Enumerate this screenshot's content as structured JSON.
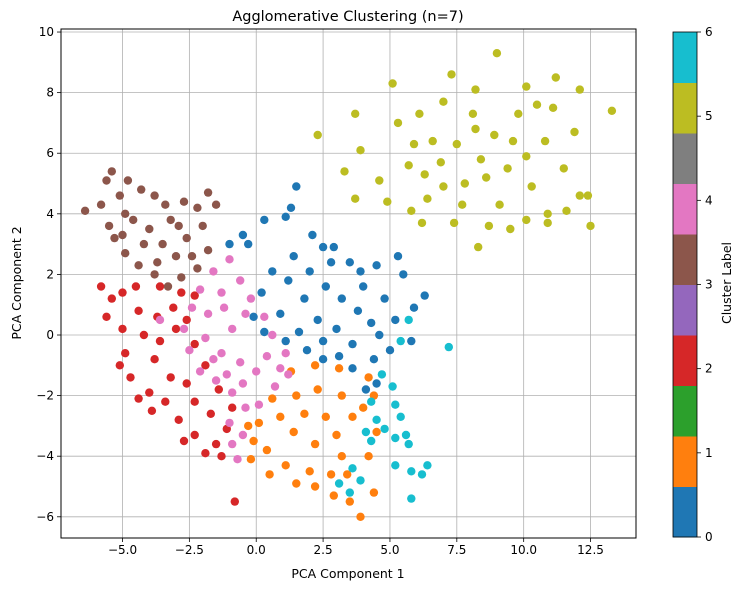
{
  "chart_data": {
    "type": "scatter",
    "title": "Agglomerative Clustering (n=7)",
    "xlabel": "PCA Component 1",
    "ylabel": "PCA Component 2",
    "xlim": [
      -7.3,
      14.2
    ],
    "ylim": [
      -6.7,
      10.1
    ],
    "xticks": [
      -5.0,
      -2.5,
      0.0,
      2.5,
      5.0,
      7.5,
      10.0,
      12.5
    ],
    "xtick_labels": [
      "−5.0",
      "−2.5",
      "0.0",
      "2.5",
      "5.0",
      "7.5",
      "10.0",
      "12.5"
    ],
    "yticks": [
      -6,
      -4,
      -2,
      0,
      2,
      4,
      6,
      8,
      10
    ],
    "ytick_labels": [
      "−6",
      "−4",
      "−2",
      "0",
      "2",
      "4",
      "6",
      "8",
      "10"
    ],
    "grid": true,
    "colorbar": {
      "label": "Cluster Label",
      "ticks": [
        0,
        1,
        2,
        3,
        4,
        5,
        6
      ],
      "tick_labels": [
        "0",
        "1",
        "2",
        "3",
        "4",
        "5",
        "6"
      ],
      "colors": [
        "#1f77b4",
        "#ff7f0e",
        "#2ca02c",
        "#d62728",
        "#9467bd",
        "#8c564b",
        "#e377c2",
        "#7f7f7f",
        "#bcbd22",
        "#17becf"
      ],
      "vmin": 0,
      "vmax": 6
    },
    "series": [
      {
        "cluster": 0,
        "color": "#1f77b4",
        "points": [
          [
            1.5,
            4.9
          ],
          [
            1.3,
            4.2
          ],
          [
            1.1,
            3.9
          ],
          [
            0.3,
            3.8
          ],
          [
            -0.5,
            3.3
          ],
          [
            -1,
            3
          ],
          [
            -0.3,
            3
          ],
          [
            2.5,
            2.9
          ],
          [
            3.5,
            2.4
          ],
          [
            4.5,
            2.3
          ],
          [
            5.3,
            2.6
          ],
          [
            5.5,
            2
          ],
          [
            6.3,
            1.3
          ],
          [
            5.9,
            0.9
          ],
          [
            5.2,
            0.5
          ],
          [
            5.8,
            -0.2
          ],
          [
            5,
            -0.5
          ],
          [
            4.4,
            -0.8
          ],
          [
            4.5,
            -1.6
          ],
          [
            4.1,
            -1.8
          ],
          [
            3.6,
            -1.1
          ],
          [
            3.1,
            -0.7
          ],
          [
            2.5,
            -0.8
          ],
          [
            1.9,
            -0.5
          ],
          [
            1.1,
            -0.2
          ],
          [
            0.3,
            0.1
          ],
          [
            -0.1,
            0.6
          ],
          [
            0.2,
            1.4
          ],
          [
            0.6,
            2.1
          ],
          [
            1.4,
            2.6
          ],
          [
            2,
            2.1
          ],
          [
            2.6,
            1.6
          ],
          [
            3.2,
            1.2
          ],
          [
            3.8,
            0.8
          ],
          [
            4.3,
            0.4
          ],
          [
            1.8,
            1.2
          ],
          [
            2.3,
            0.5
          ],
          [
            3,
            0.2
          ],
          [
            3.6,
            -0.3
          ],
          [
            2.8,
            2.4
          ],
          [
            1.2,
            1.8
          ],
          [
            0.9,
            0.7
          ],
          [
            4,
            1.6
          ],
          [
            4.8,
            1.2
          ],
          [
            2.1,
            3.3
          ],
          [
            2.9,
            2.9
          ],
          [
            3.9,
            2.1
          ],
          [
            1.6,
            0.1
          ],
          [
            2.5,
            -0.2
          ],
          [
            4.6,
            0
          ]
        ]
      },
      {
        "cluster": 1,
        "color": "#ff7f0e",
        "points": [
          [
            1.3,
            -1.2
          ],
          [
            2.2,
            -1
          ],
          [
            3.1,
            -1.1
          ],
          [
            4.2,
            -1.4
          ],
          [
            4,
            -2.4
          ],
          [
            4.5,
            -3.2
          ],
          [
            4.2,
            -4
          ],
          [
            3.4,
            -4.6
          ],
          [
            2.8,
            -4.6
          ],
          [
            2,
            -4.5
          ],
          [
            1.1,
            -4.3
          ],
          [
            0.4,
            -3.8
          ],
          [
            -0.1,
            -3.5
          ],
          [
            0.1,
            -2.9
          ],
          [
            0.6,
            -2.1
          ],
          [
            1.5,
            -2
          ],
          [
            2.3,
            -1.8
          ],
          [
            3.2,
            -2
          ],
          [
            3.6,
            -2.7
          ],
          [
            3,
            -3.3
          ],
          [
            2.2,
            -3.6
          ],
          [
            1.4,
            -3.2
          ],
          [
            0.9,
            -2.7
          ],
          [
            2.6,
            -2.7
          ],
          [
            1.8,
            -2.6
          ],
          [
            3.2,
            -4
          ],
          [
            -0.2,
            -4.1
          ],
          [
            0.5,
            -4.6
          ],
          [
            4.4,
            -5.2
          ],
          [
            3.9,
            -6
          ],
          [
            3.5,
            -5.5
          ],
          [
            2.9,
            -5.3
          ],
          [
            2.2,
            -5
          ],
          [
            1.5,
            -4.9
          ],
          [
            -0.3,
            -3
          ],
          [
            4.4,
            -2
          ]
        ]
      },
      {
        "cluster": 2,
        "color": "#d62728",
        "points": [
          [
            -5.8,
            1.6
          ],
          [
            -5.4,
            1.2
          ],
          [
            -5,
            1.4
          ],
          [
            -4.5,
            1.6
          ],
          [
            -3.6,
            1.6
          ],
          [
            -2.8,
            1.4
          ],
          [
            -2.3,
            1.3
          ],
          [
            -5.6,
            0.6
          ],
          [
            -5,
            0.2
          ],
          [
            -4.9,
            -0.6
          ],
          [
            -4.7,
            -1.4
          ],
          [
            -4,
            -1.9
          ],
          [
            -3.4,
            -2.2
          ],
          [
            -2.9,
            -2.8
          ],
          [
            -2.7,
            -3.5
          ],
          [
            -2.3,
            -3.3
          ],
          [
            -1.9,
            -3.9
          ],
          [
            -1.5,
            -3.6
          ],
          [
            -1.7,
            -2.6
          ],
          [
            -1.4,
            -1.8
          ],
          [
            -1.9,
            -1
          ],
          [
            -2.3,
            -0.3
          ],
          [
            -2.6,
            0.5
          ],
          [
            -3.1,
            0.9
          ],
          [
            -3.7,
            0.6
          ],
          [
            -4.2,
            0
          ],
          [
            -3.8,
            -0.8
          ],
          [
            -3.2,
            -1.4
          ],
          [
            -2.6,
            -1.6
          ],
          [
            -4.4,
            0.8
          ],
          [
            -3.6,
            -0.2
          ],
          [
            -3,
            0.2
          ],
          [
            -2.3,
            -2.2
          ],
          [
            -1.3,
            -4
          ],
          [
            -0.8,
            -5.5
          ],
          [
            -5.1,
            -1
          ],
          [
            -4.4,
            -2.1
          ],
          [
            -3.9,
            -2.5
          ],
          [
            -0.9,
            -2.4
          ],
          [
            -1.1,
            -3.1
          ]
        ]
      },
      {
        "cluster": 3,
        "color": "#8c564b",
        "points": [
          [
            -6.4,
            4.1
          ],
          [
            -5.8,
            4.3
          ],
          [
            -5.6,
            5.1
          ],
          [
            -5.4,
            5.4
          ],
          [
            -5.1,
            4.6
          ],
          [
            -4.8,
            5.1
          ],
          [
            -4.3,
            4.8
          ],
          [
            -3.8,
            4.6
          ],
          [
            -3.4,
            4.3
          ],
          [
            -2.7,
            4.4
          ],
          [
            -2.2,
            4.2
          ],
          [
            -1.8,
            4.7
          ],
          [
            -1.5,
            4.3
          ],
          [
            -2,
            3.6
          ],
          [
            -1.8,
            2.8
          ],
          [
            -2.2,
            2.2
          ],
          [
            -2.8,
            1.9
          ],
          [
            -3.3,
            1.6
          ],
          [
            -3.8,
            2
          ],
          [
            -4.4,
            2.3
          ],
          [
            -4.9,
            2.7
          ],
          [
            -5.3,
            3.2
          ],
          [
            -5.5,
            3.6
          ],
          [
            -4.6,
            3.8
          ],
          [
            -4,
            3.5
          ],
          [
            -3.5,
            3
          ],
          [
            -3,
            2.6
          ],
          [
            -2.6,
            3.2
          ],
          [
            -3.2,
            3.8
          ],
          [
            -4.2,
            3
          ],
          [
            -3.7,
            2.4
          ],
          [
            -2.4,
            2.6
          ],
          [
            -4.9,
            4
          ],
          [
            -2.9,
            3.6
          ],
          [
            -5,
            3.3
          ]
        ]
      },
      {
        "cluster": 4,
        "color": "#e377c2",
        "points": [
          [
            -1,
            2.5
          ],
          [
            -1.6,
            2.1
          ],
          [
            -2.1,
            1.5
          ],
          [
            -2.4,
            0.9
          ],
          [
            -2.7,
            0.2
          ],
          [
            -2.5,
            -0.5
          ],
          [
            -2.1,
            -1.2
          ],
          [
            -1.5,
            -1.5
          ],
          [
            -0.9,
            -1.9
          ],
          [
            -0.4,
            -2.4
          ],
          [
            0.1,
            -2.3
          ],
          [
            0.7,
            -1.7
          ],
          [
            1.2,
            -1.3
          ],
          [
            1.1,
            -0.6
          ],
          [
            0.6,
            0
          ],
          [
            0.3,
            0.6
          ],
          [
            -0.2,
            1.2
          ],
          [
            -0.6,
            1.8
          ],
          [
            -1.3,
            1.4
          ],
          [
            -1.8,
            0.7
          ],
          [
            -1.9,
            -0.1
          ],
          [
            -1.3,
            -0.6
          ],
          [
            -0.6,
            -0.9
          ],
          [
            0,
            -1.2
          ],
          [
            -0.9,
            0.2
          ],
          [
            -0.4,
            0.7
          ],
          [
            0.4,
            -0.7
          ],
          [
            -1.1,
            -1.3
          ],
          [
            -0.5,
            -1.6
          ],
          [
            -3.6,
            0.5
          ],
          [
            -0.9,
            -3.6
          ],
          [
            -0.7,
            -4.1
          ],
          [
            -0.5,
            -3.3
          ],
          [
            -1.2,
            0.9
          ],
          [
            -1.6,
            -0.8
          ],
          [
            0.9,
            -1.1
          ],
          [
            -1,
            -2.9
          ]
        ]
      },
      {
        "cluster": 5,
        "color": "#bcbd22",
        "points": [
          [
            5.1,
            8.3
          ],
          [
            7.3,
            8.6
          ],
          [
            9,
            9.3
          ],
          [
            10.1,
            8.2
          ],
          [
            11.2,
            8.5
          ],
          [
            12.1,
            8.1
          ],
          [
            13.3,
            7.4
          ],
          [
            11.1,
            7.5
          ],
          [
            10.5,
            7.6
          ],
          [
            9.8,
            7.3
          ],
          [
            8.2,
            8.1
          ],
          [
            7,
            7.7
          ],
          [
            6.1,
            7.3
          ],
          [
            5.3,
            7
          ],
          [
            3.7,
            7.3
          ],
          [
            2.3,
            6.6
          ],
          [
            3.9,
            6.1
          ],
          [
            3.3,
            5.4
          ],
          [
            4.6,
            5.1
          ],
          [
            4.9,
            4.4
          ],
          [
            5.8,
            4.1
          ],
          [
            6.2,
            3.7
          ],
          [
            7.4,
            3.7
          ],
          [
            8.3,
            2.9
          ],
          [
            8.7,
            3.6
          ],
          [
            9.5,
            3.5
          ],
          [
            10.1,
            3.8
          ],
          [
            10.9,
            3.7
          ],
          [
            11.6,
            4.1
          ],
          [
            12.1,
            4.6
          ],
          [
            12.5,
            3.6
          ],
          [
            11.5,
            5.5
          ],
          [
            11.9,
            6.7
          ],
          [
            10.8,
            6.4
          ],
          [
            10.1,
            5.9
          ],
          [
            9.4,
            5.5
          ],
          [
            8.6,
            5.2
          ],
          [
            7.8,
            5
          ],
          [
            7,
            4.9
          ],
          [
            6.3,
            5.3
          ],
          [
            5.7,
            5.6
          ],
          [
            5.9,
            6.3
          ],
          [
            6.6,
            6.4
          ],
          [
            7.5,
            6.3
          ],
          [
            8.2,
            6.8
          ],
          [
            8.9,
            6.6
          ],
          [
            9.6,
            6.4
          ],
          [
            6.4,
            4.5
          ],
          [
            9.1,
            4.3
          ],
          [
            10.3,
            4.9
          ],
          [
            3.7,
            4.5
          ],
          [
            6.9,
            5.7
          ],
          [
            8.4,
            5.8
          ],
          [
            7.7,
            4.3
          ],
          [
            8.1,
            7.3
          ],
          [
            12.4,
            4.6
          ],
          [
            10.9,
            4
          ]
        ]
      },
      {
        "cluster": 6,
        "color": "#17becf",
        "points": [
          [
            7.2,
            -0.4
          ],
          [
            5.7,
            0.5
          ],
          [
            5.4,
            -0.2
          ],
          [
            5.1,
            -1.7
          ],
          [
            5.2,
            -2.3
          ],
          [
            5.4,
            -2.7
          ],
          [
            5.6,
            -3.3
          ],
          [
            5.7,
            -3.6
          ],
          [
            5.8,
            -4.5
          ],
          [
            6.2,
            -4.6
          ],
          [
            6.4,
            -4.3
          ],
          [
            5.8,
            -5.4
          ],
          [
            5.2,
            -4.3
          ],
          [
            5.2,
            -3.4
          ],
          [
            4.8,
            -3.1
          ],
          [
            4.3,
            -3.5
          ],
          [
            4.1,
            -3.2
          ],
          [
            4.5,
            -2.8
          ],
          [
            3.6,
            -4.4
          ],
          [
            3.9,
            -4.8
          ],
          [
            3.5,
            -5.2
          ],
          [
            3.1,
            -4.9
          ],
          [
            4.7,
            -1.3
          ],
          [
            4.3,
            -2.2
          ]
        ]
      }
    ]
  }
}
